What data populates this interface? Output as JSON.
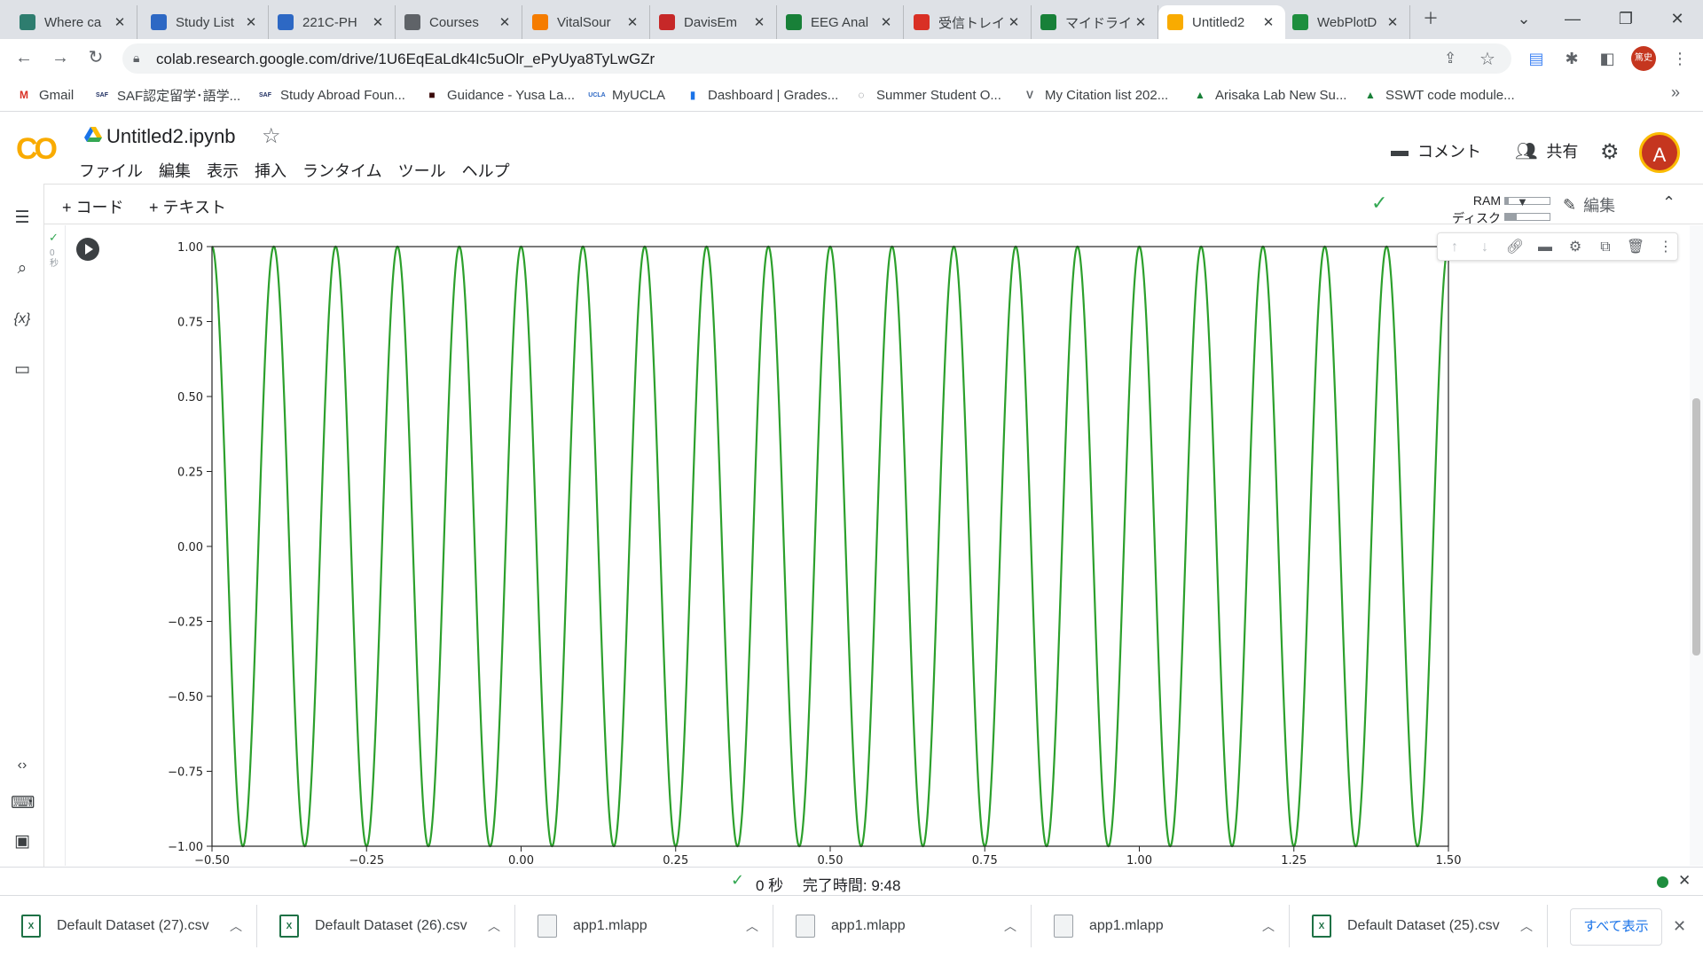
{
  "browser": {
    "tabs": [
      {
        "label": "Where ca",
        "icon": "generic-favicon-icon",
        "color": "#2e7d6f"
      },
      {
        "label": "Study List",
        "icon": "ucla-favicon-icon",
        "color": "#2d68c4"
      },
      {
        "label": "221C-PH",
        "icon": "ucla-favicon-icon",
        "color": "#2d68c4"
      },
      {
        "label": "Courses",
        "icon": "globe-icon",
        "color": "#5f6368"
      },
      {
        "label": "VitalSour",
        "icon": "vitalsource-icon",
        "color": "#f57c00"
      },
      {
        "label": "DavisEm",
        "icon": "pdf-icon",
        "color": "#c62828"
      },
      {
        "label": "EEG Anal",
        "icon": "google-drive-icon",
        "color": "#188038"
      },
      {
        "label": "受信トレイ",
        "icon": "gmail-icon",
        "color": "#d93025"
      },
      {
        "label": "マイドライブ",
        "icon": "google-drive-icon",
        "color": "#188038"
      },
      {
        "label": "Untitled2",
        "icon": "colab-icon",
        "color": "#f9ab00",
        "active": true
      },
      {
        "label": "WebPlotD",
        "icon": "webplotdigitizer-icon",
        "color": "#1e8e3e"
      }
    ],
    "url": "colab.research.google.com/drive/1U6EqEaLdk4Ic5uOlr_ePyUya8TyLwGZr",
    "profile_initials": "篤史",
    "bookmarks": [
      {
        "label": "Gmail",
        "icon": "gmail-icon",
        "glyph": "M",
        "color": "#d93025"
      },
      {
        "label": "SAF認定留学･語学...",
        "icon": "saf-icon",
        "glyph": "SAF",
        "color": "#1a2a5e"
      },
      {
        "label": "Study Abroad Foun...",
        "icon": "saf-icon",
        "glyph": "SAF",
        "color": "#1a2a5e"
      },
      {
        "label": "Guidance - Yusa La...",
        "icon": "guidance-icon",
        "glyph": "■",
        "color": "#3a0a0a"
      },
      {
        "label": "MyUCLA",
        "icon": "ucla-icon",
        "glyph": "UCLA",
        "color": "#2d68c4"
      },
      {
        "label": "Dashboard | Grades...",
        "icon": "bar-chart-icon",
        "glyph": "▮",
        "color": "#1a73e8"
      },
      {
        "label": "Summer Student O...",
        "icon": "globe-icon",
        "glyph": "◌",
        "color": "#5f6368"
      },
      {
        "label": "My Citation list 202...",
        "icon": "citation-icon",
        "glyph": "V",
        "color": "#5f6368"
      },
      {
        "label": "Arisaka Lab New Su...",
        "icon": "google-drive-icon",
        "glyph": "▲",
        "color": "#188038"
      },
      {
        "label": "SSWT code module...",
        "icon": "google-drive-icon",
        "glyph": "▲",
        "color": "#188038"
      }
    ]
  },
  "colab": {
    "title": "Untitled2.ipynb",
    "menus": [
      "ファイル",
      "編集",
      "表示",
      "挿入",
      "ランタイム",
      "ツール",
      "ヘルプ"
    ],
    "comment_label": "コメント",
    "share_label": "共有",
    "avatar_letter": "A",
    "add_code": "+ コード",
    "add_text": "+ テキスト",
    "ram_label": "RAM",
    "disk_label": "ディスク",
    "ram_fill": 0.08,
    "disk_fill": 0.25,
    "edit_label": "編集",
    "cell_status_check": "✓",
    "cell_status_time": "0\n秒",
    "status_check": "✓",
    "status_text": "0 秒　 完了時間: 9:48"
  },
  "chart_data": {
    "type": "line",
    "series": [
      {
        "color": "#2ca02c",
        "function": "cos",
        "frequency": 10,
        "amplitude": 1
      }
    ],
    "x_range": [
      -0.5,
      1.5
    ],
    "xlim": [
      -0.5,
      1.5
    ],
    "ylim": [
      -1.0,
      1.0
    ],
    "xticks": [
      "−0.50",
      "−0.25",
      "0.00",
      "0.25",
      "0.50",
      "0.75",
      "1.00",
      "1.25",
      "1.50"
    ],
    "xtick_values": [
      -0.5,
      -0.25,
      0.0,
      0.25,
      0.5,
      0.75,
      1.0,
      1.25,
      1.5
    ],
    "yticks": [
      "1.00",
      "0.75",
      "0.50",
      "0.25",
      "0.00",
      "−0.25",
      "−0.50",
      "−0.75",
      "−1.00"
    ],
    "ytick_values": [
      1.0,
      0.75,
      0.5,
      0.25,
      0.0,
      -0.25,
      -0.5,
      -0.75,
      -1.0
    ],
    "title": "",
    "xlabel": "",
    "ylabel": "",
    "grid": false
  },
  "downloads": {
    "items": [
      {
        "name": "Default Dataset (27).csv",
        "icon": "excel-csv-icon"
      },
      {
        "name": "Default Dataset (26).csv",
        "icon": "excel-csv-icon"
      },
      {
        "name": "app1.mlapp",
        "icon": "file-icon"
      },
      {
        "name": "app1.mlapp",
        "icon": "file-icon"
      },
      {
        "name": "app1.mlapp",
        "icon": "file-icon"
      },
      {
        "name": "Default Dataset (25).csv",
        "icon": "excel-csv-icon"
      }
    ],
    "show_all": "すべて表示"
  }
}
